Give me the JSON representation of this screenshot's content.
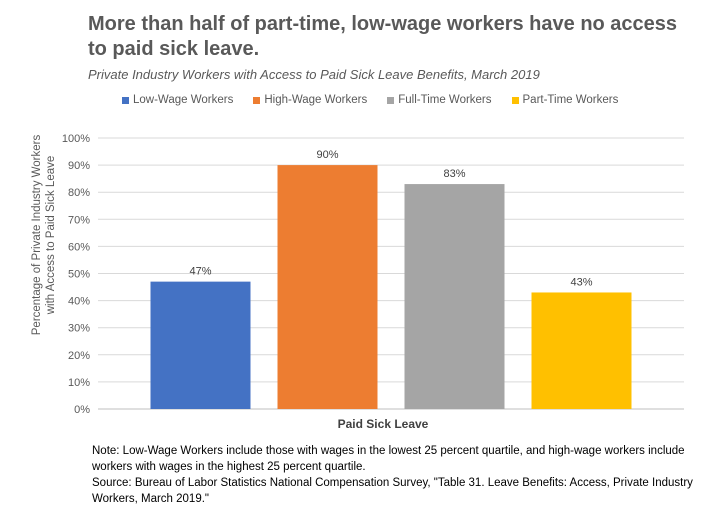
{
  "chart_data": {
    "type": "bar",
    "title": "More than half of part-time, low-wage workers have no access to paid sick leave.",
    "subtitle": "Private Industry Workers with Access to Paid Sick Leave Benefits, March 2019",
    "xlabel": "Paid Sick Leave",
    "ylabel_lines": [
      "Percentage of Private Industry Workers",
      "with Access to Paid Sick Leave"
    ],
    "ylim": [
      0,
      100
    ],
    "yticks": [
      "0%",
      "10%",
      "20%",
      "30%",
      "40%",
      "50%",
      "60%",
      "70%",
      "80%",
      "90%",
      "100%"
    ],
    "grid": true,
    "legend_position": "top",
    "categories": [
      "Paid Sick Leave"
    ],
    "series": [
      {
        "name": "Low-Wage Workers",
        "values": [
          47
        ],
        "label": "47%",
        "color": "#4472C4"
      },
      {
        "name": "High-Wage Workers",
        "values": [
          90
        ],
        "label": "90%",
        "color": "#ED7D31"
      },
      {
        "name": "Full-Time Workers",
        "values": [
          83
        ],
        "label": "83%",
        "color": "#A5A5A5"
      },
      {
        "name": "Part-Time Workers",
        "values": [
          43
        ],
        "label": "43%",
        "color": "#FFC000"
      }
    ]
  },
  "notes": {
    "note": "Note: Low-Wage Workers include those with wages in the lowest 25 percent quartile, and high-wage workers include workers with wages in the highest 25 percent quartile.",
    "source": "Source: Bureau of Labor Statistics National Compensation Survey, \"Table 31. Leave Benefits: Access, Private Industry Workers, March 2019.\""
  }
}
